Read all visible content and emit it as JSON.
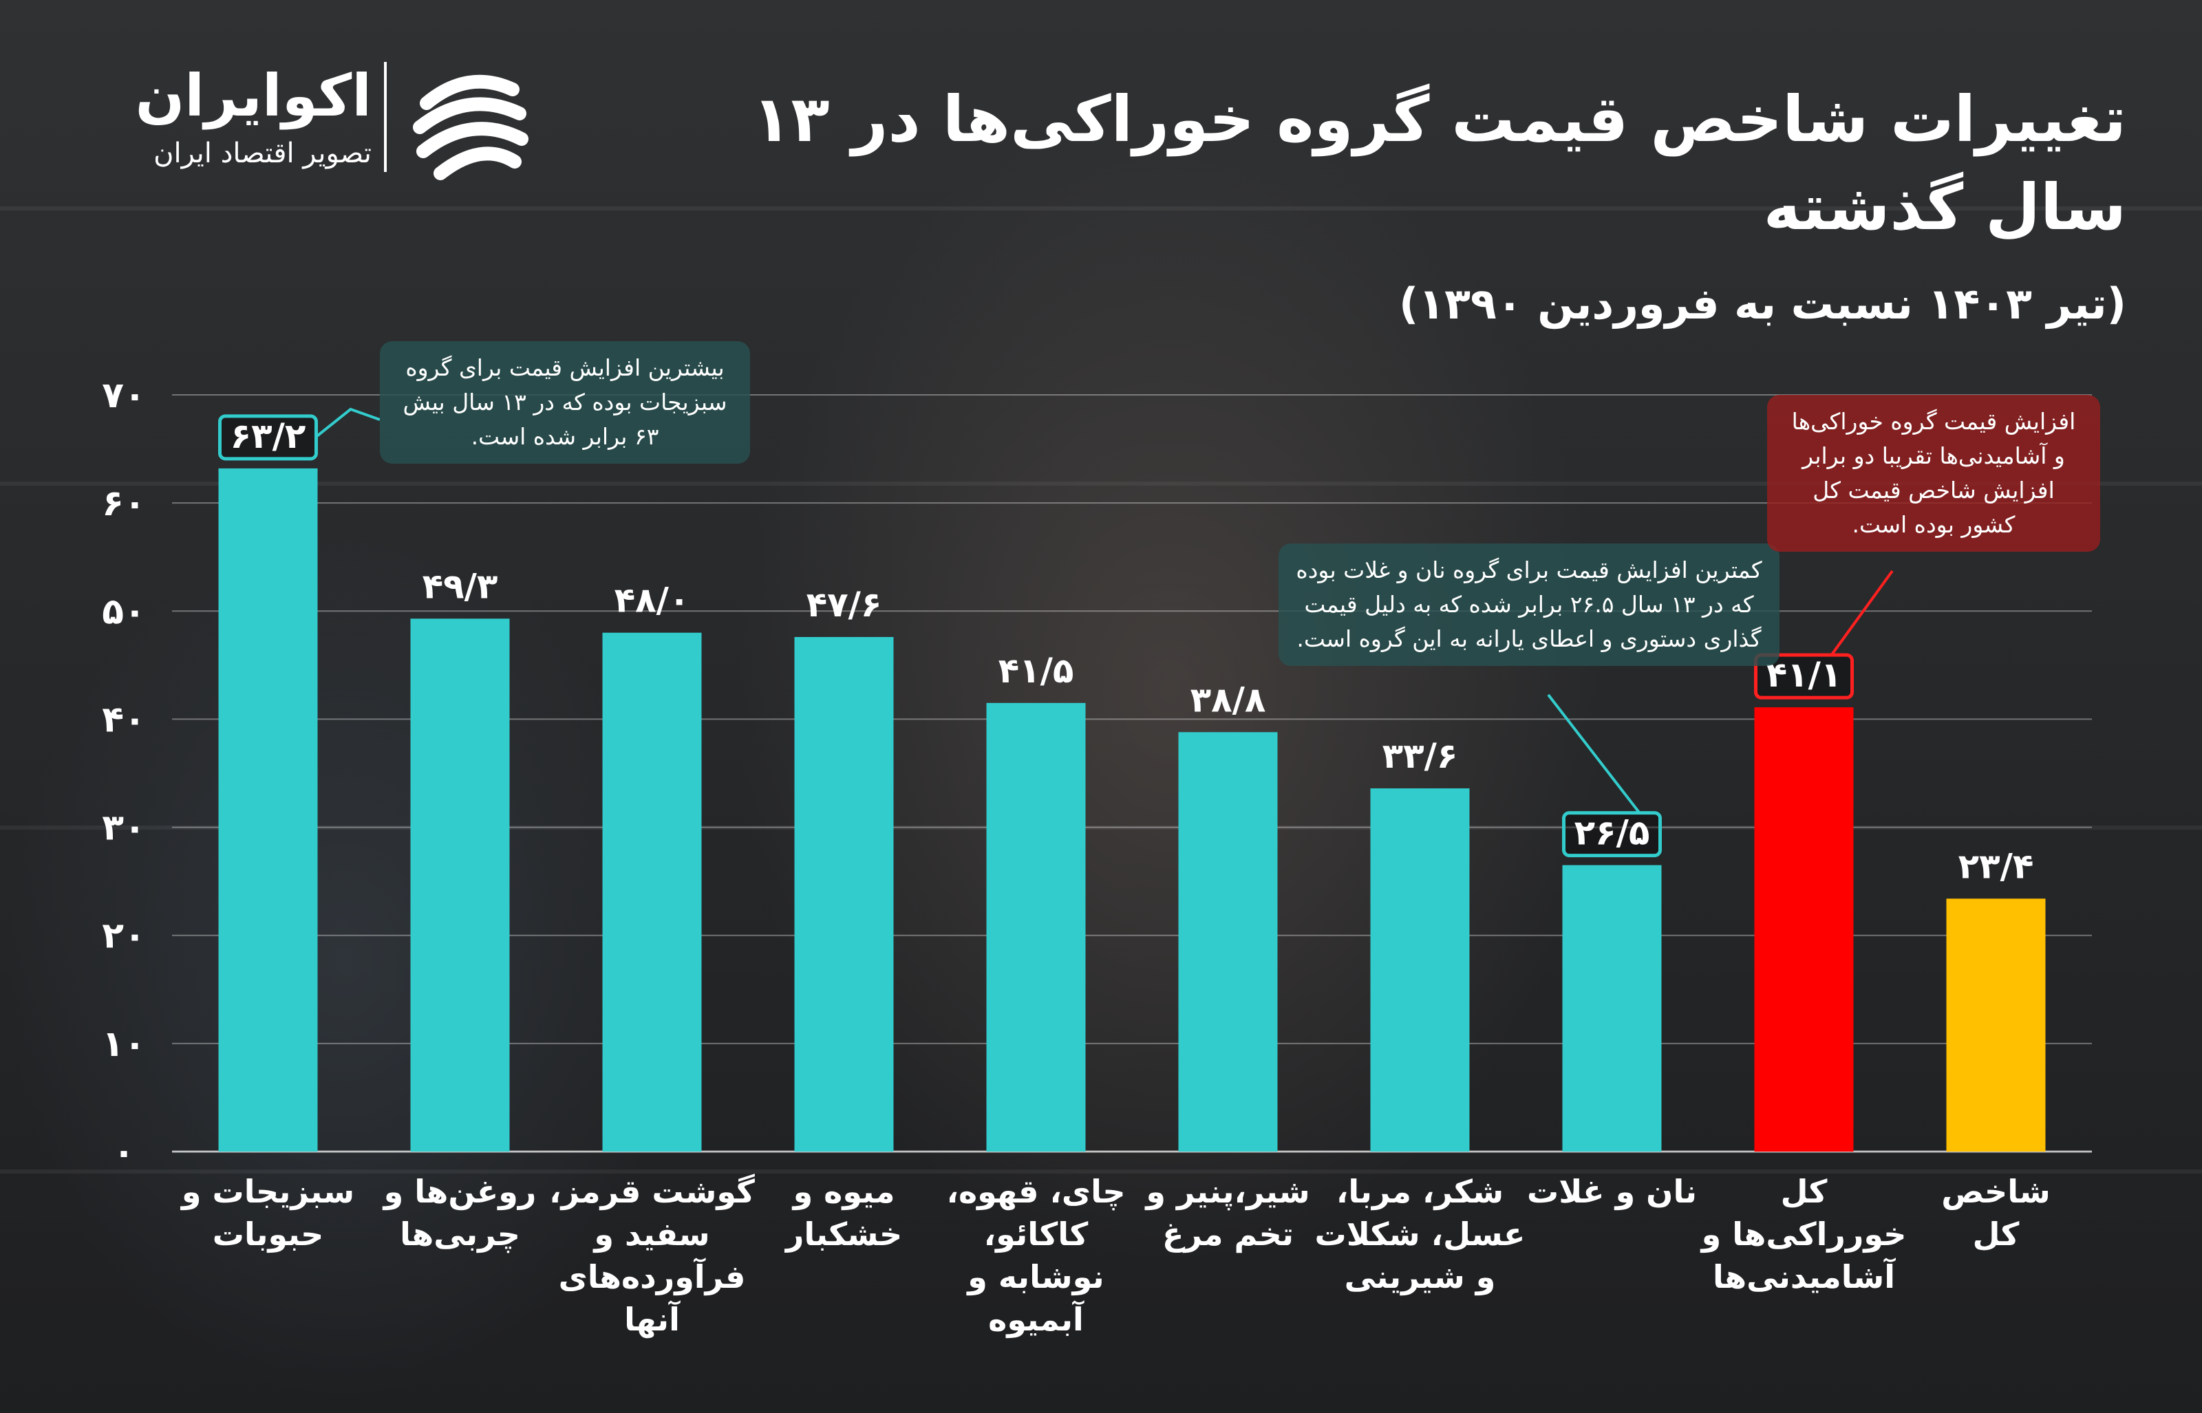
{
  "title": "تغییرات شاخص قیمت گروه خوراکی‌ها در ۱۳ سال گذشته",
  "subtitle": "(تیر ۱۴۰۳ نسبت به فروردین ۱۳۹۰)",
  "logo": {
    "name": "اکوایران",
    "tagline": "تصویر اقتصاد ایران"
  },
  "callouts": {
    "highest": "بیشترین افزایش قیمت برای گروه سبزیجات بوده که در ۱۳ سال بیش ۶۳ برابر شده است.",
    "lowest": "کمترین افزایش قیمت برای گروه نان و غلات بوده که در ۱۳ سال ۲۶.۵ برابر شده که به دلیل قیمت گذاری دستوری و اعطای یارانه به این گروه است.",
    "overall": "افزایش قیمت گروه خوراکی‌ها و آشامیدنی‌ها تقریبا دو برابر افزایش شاخص قیمت کل کشور بوده است."
  },
  "colors": {
    "teal": "#33CCCC",
    "red": "#FF0000",
    "yellow": "#FFC000",
    "highlight_border_teal": "#33CCCC",
    "highlight_border_red": "#FF2020",
    "callout_teal": "#285050",
    "callout_red": "#961E1E",
    "text": "#FFFFFF",
    "grid": "#FFFFFF"
  },
  "chart_data": {
    "type": "bar",
    "ylim": [
      0,
      70
    ],
    "yticks": [
      0,
      10,
      20,
      30,
      40,
      50,
      60,
      70
    ],
    "ytick_labels": [
      "۰",
      "۱۰",
      "۲۰",
      "۳۰",
      "۴۰",
      "۵۰",
      "۶۰",
      "۷۰"
    ],
    "grid": true,
    "categories": [
      [
        "سبزیجات و",
        "حبوبات"
      ],
      [
        "روغن‌ها و",
        "چربی‌ها"
      ],
      [
        "گوشت قرمز،",
        "سفید و",
        "فرآورده‌های",
        "آنها"
      ],
      [
        "میوه و",
        "خشکبار"
      ],
      [
        "چای، قهوه،",
        "کاکائو،",
        "نوشابه و",
        "آبمیوه"
      ],
      [
        "شیر،پنیر و",
        "تخم مرغ"
      ],
      [
        "شکر، مربا،",
        "عسل، شکلات",
        "و شیرینی"
      ],
      [
        "نان و غلات"
      ],
      [
        "کل",
        "خورراکی‌ها و",
        "آشامیدنی‌ها"
      ],
      [
        "شاخص",
        "کل"
      ]
    ],
    "values": [
      63.2,
      49.3,
      48.0,
      47.6,
      41.5,
      38.8,
      33.6,
      26.5,
      41.1,
      23.4
    ],
    "value_labels": [
      "۶۳/۲",
      "۴۹/۳",
      "۴۸/۰",
      "۴۷/۶",
      "۴۱/۵",
      "۳۸/۸",
      "۳۳/۶",
      "۲۶/۵",
      "۴۱/۱",
      "۲۳/۴"
    ],
    "bar_colors": [
      "#33CCCC",
      "#33CCCC",
      "#33CCCC",
      "#33CCCC",
      "#33CCCC",
      "#33CCCC",
      "#33CCCC",
      "#33CCCC",
      "#FF0000",
      "#FFC000"
    ],
    "boxed_labels": [
      0,
      7,
      8
    ]
  }
}
